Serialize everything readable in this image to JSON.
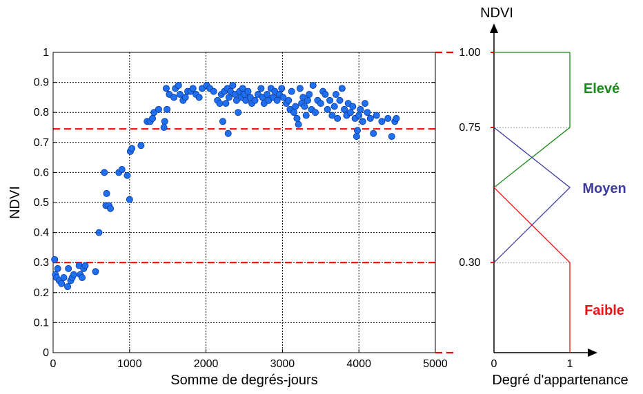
{
  "chart_data": [
    {
      "type": "scatter",
      "xlabel": "Somme de degrés-jours",
      "ylabel": "NDVI",
      "xlim": [
        0,
        5000
      ],
      "ylim": [
        0,
        1
      ],
      "grid": true,
      "x_ticks": [
        "0",
        "1000",
        "2000",
        "3000",
        "4000",
        "5000"
      ],
      "y_ticks": [
        "0",
        "0.1",
        "0.2",
        "0.3",
        "0.4",
        "0.5",
        "0.6",
        "0.7",
        "0.8",
        "0.9",
        "1"
      ],
      "reference_lines": [
        0.745,
        0.3
      ],
      "series": [
        {
          "marker_color": "#1f6fef",
          "points": [
            [
              20,
              0.31
            ],
            [
              30,
              0.26
            ],
            [
              45,
              0.25
            ],
            [
              60,
              0.28
            ],
            [
              80,
              0.24
            ],
            [
              110,
              0.23
            ],
            [
              140,
              0.25
            ],
            [
              190,
              0.22
            ],
            [
              200,
              0.28
            ],
            [
              230,
              0.24
            ],
            [
              250,
              0.25
            ],
            [
              270,
              0.26
            ],
            [
              340,
              0.29
            ],
            [
              355,
              0.26
            ],
            [
              380,
              0.25
            ],
            [
              400,
              0.28
            ],
            [
              420,
              0.29
            ],
            [
              555,
              0.27
            ],
            [
              600,
              0.4
            ],
            [
              670,
              0.6
            ],
            [
              690,
              0.49
            ],
            [
              700,
              0.53
            ],
            [
              730,
              0.49
            ],
            [
              750,
              0.48
            ],
            [
              860,
              0.6
            ],
            [
              900,
              0.61
            ],
            [
              970,
              0.59
            ],
            [
              1000,
              0.51
            ],
            [
              1010,
              0.67
            ],
            [
              1030,
              0.68
            ],
            [
              1150,
              0.69
            ],
            [
              1230,
              0.77
            ],
            [
              1270,
              0.77
            ],
            [
              1300,
              0.78
            ],
            [
              1320,
              0.8
            ],
            [
              1380,
              0.81
            ],
            [
              1450,
              0.75
            ],
            [
              1460,
              0.77
            ],
            [
              1490,
              0.81
            ],
            [
              1480,
              0.88
            ],
            [
              1520,
              0.86
            ],
            [
              1580,
              0.85
            ],
            [
              1600,
              0.88
            ],
            [
              1640,
              0.89
            ],
            [
              1660,
              0.86
            ],
            [
              1700,
              0.84
            ],
            [
              1730,
              0.85
            ],
            [
              1760,
              0.87
            ],
            [
              1800,
              0.87
            ],
            [
              1830,
              0.88
            ],
            [
              1870,
              0.86
            ],
            [
              1910,
              0.85
            ],
            [
              1950,
              0.88
            ],
            [
              2010,
              0.89
            ],
            [
              2050,
              0.88
            ],
            [
              2100,
              0.87
            ],
            [
              2150,
              0.84
            ],
            [
              2180,
              0.83
            ],
            [
              2200,
              0.86
            ],
            [
              2220,
              0.77
            ],
            [
              2240,
              0.87
            ],
            [
              2260,
              0.83
            ],
            [
              2280,
              0.88
            ],
            [
              2290,
              0.73
            ],
            [
              2300,
              0.85
            ],
            [
              2320,
              0.87
            ],
            [
              2350,
              0.89
            ],
            [
              2380,
              0.86
            ],
            [
              2400,
              0.84
            ],
            [
              2420,
              0.8
            ],
            [
              2440,
              0.87
            ],
            [
              2460,
              0.85
            ],
            [
              2480,
              0.88
            ],
            [
              2500,
              0.86
            ],
            [
              2520,
              0.84
            ],
            [
              2550,
              0.87
            ],
            [
              2580,
              0.85
            ],
            [
              2600,
              0.83
            ],
            [
              2640,
              0.84
            ],
            [
              2680,
              0.86
            ],
            [
              2720,
              0.88
            ],
            [
              2740,
              0.85
            ],
            [
              2760,
              0.83
            ],
            [
              2800,
              0.86
            ],
            [
              2820,
              0.84
            ],
            [
              2850,
              0.88
            ],
            [
              2880,
              0.85
            ],
            [
              2900,
              0.87
            ],
            [
              2930,
              0.84
            ],
            [
              2960,
              0.86
            ],
            [
              2990,
              0.88
            ],
            [
              3010,
              0.85
            ],
            [
              3050,
              0.83
            ],
            [
              3080,
              0.84
            ],
            [
              3100,
              0.81
            ],
            [
              3120,
              0.87
            ],
            [
              3150,
              0.8
            ],
            [
              3170,
              0.82
            ],
            [
              3190,
              0.78
            ],
            [
              3210,
              0.76
            ],
            [
              3230,
              0.88
            ],
            [
              3250,
              0.83
            ],
            [
              3270,
              0.85
            ],
            [
              3290,
              0.82
            ],
            [
              3310,
              0.79
            ],
            [
              3330,
              0.84
            ],
            [
              3350,
              0.86
            ],
            [
              3380,
              0.81
            ],
            [
              3400,
              0.89
            ],
            [
              3430,
              0.8
            ],
            [
              3460,
              0.84
            ],
            [
              3500,
              0.83
            ],
            [
              3530,
              0.87
            ],
            [
              3560,
              0.86
            ],
            [
              3590,
              0.81
            ],
            [
              3620,
              0.84
            ],
            [
              3650,
              0.79
            ],
            [
              3680,
              0.82
            ],
            [
              3700,
              0.86
            ],
            [
              3720,
              0.78
            ],
            [
              3750,
              0.84
            ],
            [
              3780,
              0.88
            ],
            [
              3810,
              0.81
            ],
            [
              3840,
              0.79
            ],
            [
              3860,
              0.83
            ],
            [
              3890,
              0.8
            ],
            [
              3920,
              0.82
            ],
            [
              3950,
              0.78
            ],
            [
              3970,
              0.72
            ],
            [
              3980,
              0.74
            ],
            [
              4000,
              0.79
            ],
            [
              4020,
              0.81
            ],
            [
              4050,
              0.77
            ],
            [
              4080,
              0.83
            ],
            [
              4110,
              0.8
            ],
            [
              4150,
              0.78
            ],
            [
              4190,
              0.73
            ],
            [
              4230,
              0.79
            ],
            [
              4300,
              0.77
            ],
            [
              4380,
              0.78
            ],
            [
              4430,
              0.72
            ],
            [
              4470,
              0.77
            ],
            [
              4490,
              0.78
            ]
          ]
        }
      ]
    },
    {
      "type": "line",
      "title": "NDVI",
      "xlabel": "Degré d'appartenance",
      "x_ticks": [
        "0",
        "1"
      ],
      "y_tick_labels": [
        "1.00",
        "0.75",
        "0.30"
      ],
      "y_tick_values": [
        1.0,
        0.75,
        0.3
      ],
      "ylim": [
        0,
        1
      ],
      "xlim": [
        0,
        1
      ],
      "series": [
        {
          "name": "Elevé",
          "color": "#1a8a1a",
          "x": [
            0,
            1,
            1,
            1
          ],
          "y": [
            0.55,
            0.75,
            1.0,
            1.0
          ]
        },
        {
          "name": "Moyen",
          "color": "#3c3ca0",
          "x": [
            0,
            1,
            0
          ],
          "y": [
            0.3,
            0.55,
            0.75
          ]
        },
        {
          "name": "Faible",
          "color": "#e81010",
          "x": [
            0,
            1,
            1
          ],
          "y": [
            0.55,
            0.3,
            0.0
          ]
        }
      ],
      "labels": {
        "eleve": "Elevé",
        "moyen": "Moyen",
        "faible": "Faible"
      }
    }
  ]
}
